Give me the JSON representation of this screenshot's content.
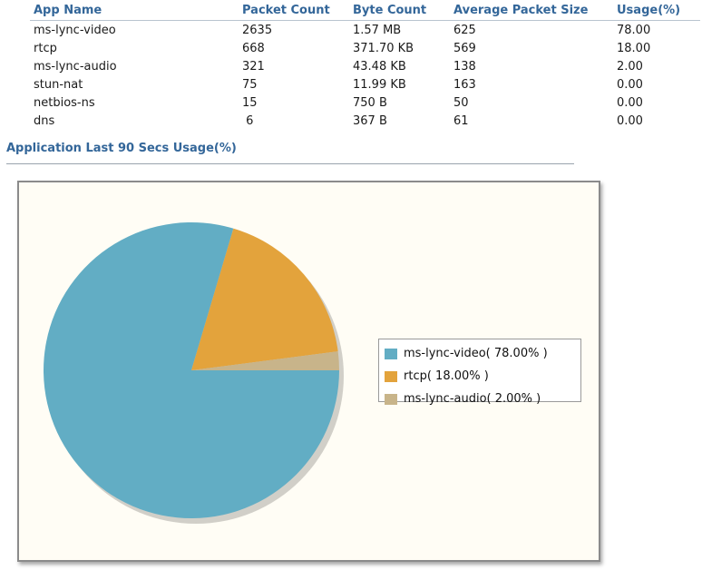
{
  "table": {
    "headers": [
      "App Name",
      "Packet Count",
      "Byte Count",
      "Average Packet Size",
      "Usage(%)"
    ],
    "rows": [
      [
        "ms-lync-video",
        "2635",
        "1.57  MB",
        "625",
        "78.00"
      ],
      [
        "rtcp",
        "668",
        "371.70 KB",
        "569",
        "18.00"
      ],
      [
        "ms-lync-audio",
        "321",
        "43.48 KB",
        "138",
        "2.00"
      ],
      [
        "stun-nat",
        "75",
        "11.99 KB",
        "163",
        "0.00"
      ],
      [
        "netbios-ns",
        "15",
        "750  B",
        "50",
        "0.00"
      ],
      [
        "dns",
        " 6",
        "367  B",
        "61",
        "0.00"
      ]
    ]
  },
  "section": {
    "title": "Application Last 90 Secs Usage(%)"
  },
  "chart_data": {
    "type": "pie",
    "title": "",
    "legend_position": "right",
    "slices": [
      {
        "label": "ms-lync-video( 78.00% )",
        "name": "ms-lync-video",
        "value": 78.0,
        "color": "#62adc4"
      },
      {
        "label": "rtcp( 18.00% )",
        "name": "rtcp",
        "value": 18.0,
        "color": "#e3a33c"
      },
      {
        "label": "ms-lync-audio( 2.00% )",
        "name": "ms-lync-audio",
        "value": 2.0,
        "color": "#c8b48a"
      }
    ]
  }
}
